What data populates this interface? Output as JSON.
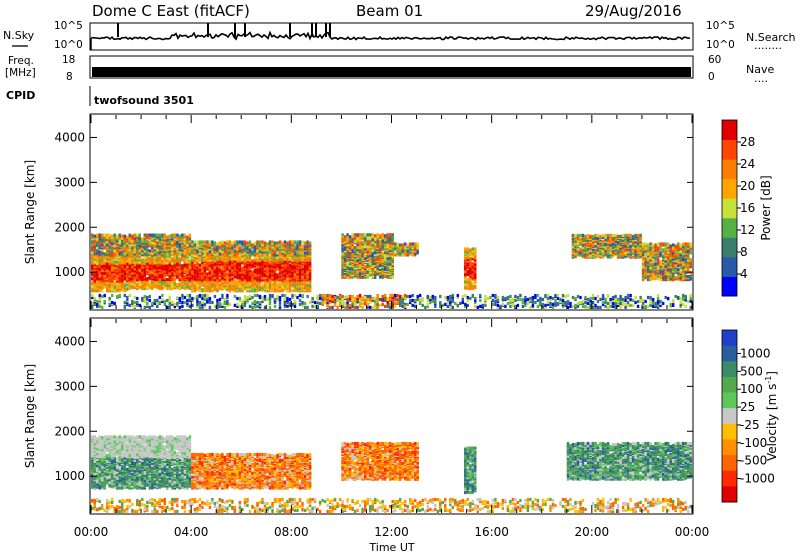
{
  "header": {
    "title": "Dome C East (fitACF)",
    "beam": "Beam 01",
    "date": "29/Aug/2016"
  },
  "noise_panel": {
    "left_label": "N.Sky",
    "right_label": "N.Search",
    "right_dots": "........",
    "left_ticks": [
      "10^5",
      "10^0"
    ],
    "right_ticks": [
      "10^5",
      "10^0"
    ]
  },
  "freq_panel": {
    "left_label_line1": "Freq.",
    "left_label_line2": "[MHz]",
    "right_label": "Nave",
    "right_dots": "....",
    "left_ticks": [
      "18",
      "8"
    ],
    "right_ticks": [
      "60",
      "0"
    ]
  },
  "cpid": {
    "label": "CPID",
    "value": "twofsound 3501"
  },
  "colors": {
    "power_scale": [
      "#0000ff",
      "#2a59a9",
      "#3b7e6c",
      "#57b044",
      "#c8e03c",
      "#ffa500",
      "#ff7d00",
      "#ff4500",
      "#e00000"
    ],
    "velocity_scale": [
      "#1e3fc6",
      "#2a5ea0",
      "#3c8a68",
      "#54a94a",
      "#5cc85c",
      "#c8c8c8",
      "#ffbe00",
      "#ff9100",
      "#ff6400",
      "#ff2a00",
      "#e00000"
    ]
  },
  "chart_data": [
    {
      "type": "heatmap",
      "quantity": "power",
      "xlabel": "Time UT",
      "ylabel": "Slant Range [km]",
      "x_ticks": [
        "00:00",
        "04:00",
        "08:00",
        "12:00",
        "16:00",
        "20:00",
        "00:00"
      ],
      "x_range_hours": [
        0,
        24
      ],
      "y_ticks": [
        1000,
        2000,
        3000,
        4000
      ],
      "ylim": [
        180,
        4500
      ],
      "colorbar": {
        "label": "Power [dB]",
        "ticks": [
          "4",
          "8",
          "12",
          "16",
          "20",
          "24",
          "28"
        ],
        "range": [
          0,
          32
        ]
      },
      "regions": [
        {
          "t": [
            0.0,
            1.5
          ],
          "r": [
            550,
            1350
          ],
          "level": "high"
        },
        {
          "t": [
            1.5,
            4.0
          ],
          "r": [
            600,
            1350
          ],
          "level": "high"
        },
        {
          "t": [
            4.0,
            8.7
          ],
          "r": [
            550,
            1450
          ],
          "level": "high"
        },
        {
          "t": [
            0.0,
            4.0
          ],
          "r": [
            1350,
            1800
          ],
          "level": "mid"
        },
        {
          "t": [
            4.0,
            8.7
          ],
          "r": [
            1350,
            1650
          ],
          "level": "mid"
        },
        {
          "t": [
            10.0,
            12.0
          ],
          "r": [
            850,
            1800
          ],
          "level": "mid"
        },
        {
          "t": [
            12.0,
            13.0
          ],
          "r": [
            1350,
            1600
          ],
          "level": "mid"
        },
        {
          "t": [
            14.9,
            15.3
          ],
          "r": [
            600,
            1500
          ],
          "level": "high"
        },
        {
          "t": [
            19.2,
            22.0
          ],
          "r": [
            1300,
            1800
          ],
          "level": "mid"
        },
        {
          "t": [
            22.0,
            24.0
          ],
          "r": [
            800,
            1600
          ],
          "level": "mid"
        },
        {
          "t": [
            0.0,
            24.0
          ],
          "r": [
            180,
            450
          ],
          "level": "low"
        },
        {
          "t": [
            9.0,
            12.5
          ],
          "r": [
            180,
            450
          ],
          "level": "mixed"
        }
      ]
    },
    {
      "type": "heatmap",
      "quantity": "velocity",
      "xlabel": "Time UT",
      "ylabel": "Slant Range [km]",
      "x_ticks": [
        "00:00",
        "04:00",
        "08:00",
        "12:00",
        "16:00",
        "20:00",
        "00:00"
      ],
      "x_range_hours": [
        0,
        24
      ],
      "y_ticks": [
        1000,
        2000,
        3000,
        4000
      ],
      "ylim": [
        180,
        4500
      ],
      "colorbar": {
        "label": "Velocity [m s^-1]",
        "ticks": [
          "1000",
          "500",
          "100",
          "25",
          "-25",
          "-100",
          "-500",
          "-1000"
        ]
      },
      "regions": [
        {
          "t": [
            0.0,
            4.0
          ],
          "r": [
            700,
            1400
          ],
          "level": "positive"
        },
        {
          "t": [
            0.0,
            4.0
          ],
          "r": [
            1400,
            1850
          ],
          "level": "zero"
        },
        {
          "t": [
            4.0,
            8.7
          ],
          "r": [
            700,
            1450
          ],
          "level": "negative"
        },
        {
          "t": [
            10.0,
            13.0
          ],
          "r": [
            900,
            1700
          ],
          "level": "negative"
        },
        {
          "t": [
            14.9,
            15.3
          ],
          "r": [
            600,
            1600
          ],
          "level": "positive"
        },
        {
          "t": [
            19.0,
            24.0
          ],
          "r": [
            900,
            1700
          ],
          "level": "positive"
        },
        {
          "t": [
            0.0,
            24.0
          ],
          "r": [
            180,
            450
          ],
          "level": "mixed"
        }
      ]
    }
  ]
}
